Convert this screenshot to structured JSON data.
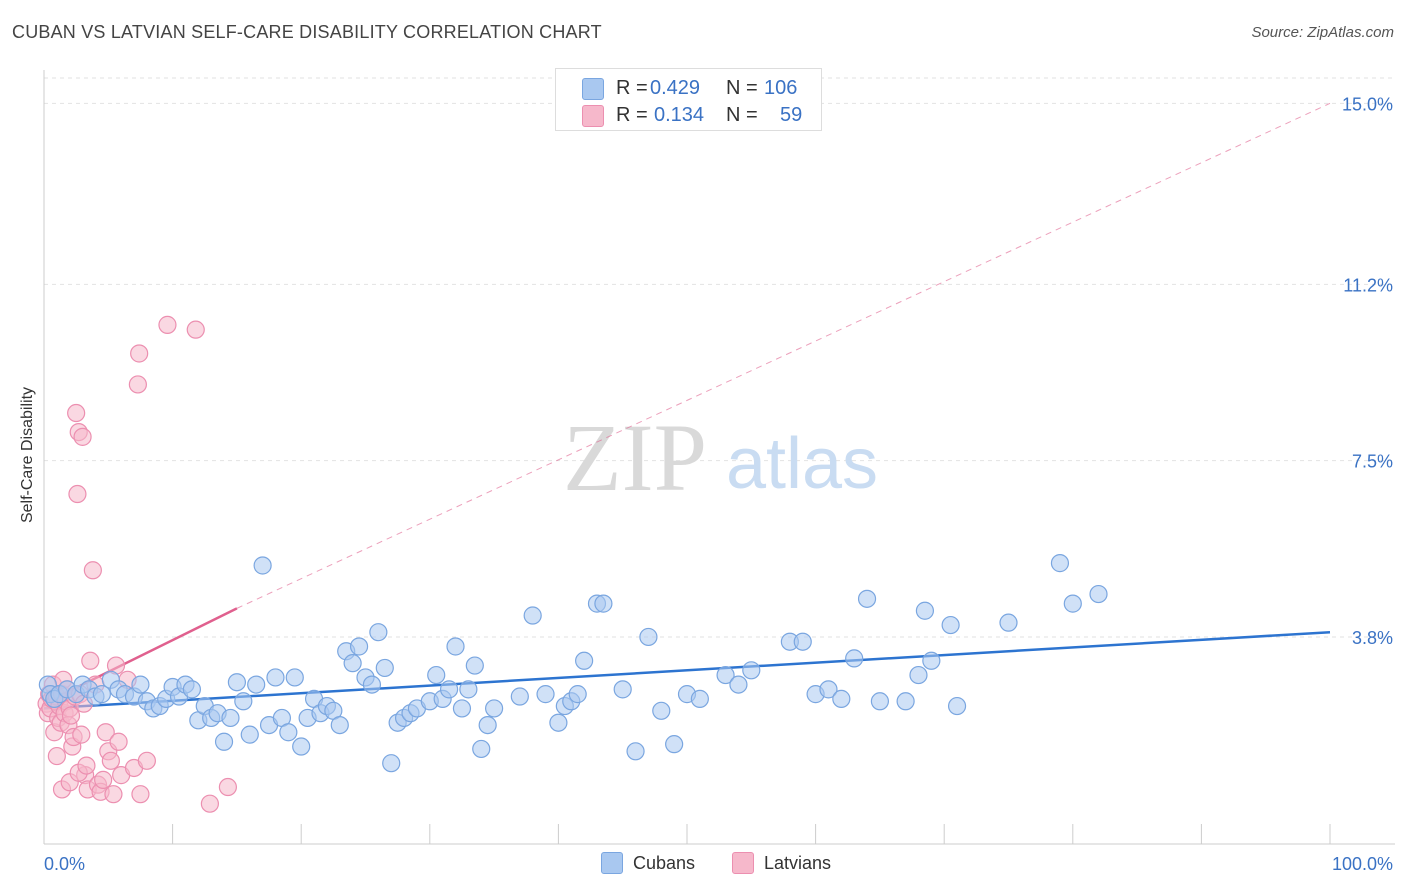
{
  "title": "CUBAN VS LATVIAN SELF-CARE DISABILITY CORRELATION CHART",
  "source": "Source: ZipAtlas.com",
  "watermark": {
    "zip": "ZIP",
    "atlas": "atlas"
  },
  "colors": {
    "blue_fill": "#a9c8f0",
    "blue_stroke": "#7aa6e0",
    "blue_line": "#2d74d0",
    "pink_fill": "#f6b8cb",
    "pink_stroke": "#ec8fb0",
    "pink_line": "#e0608e",
    "axis_label": "#3a72c4"
  },
  "legend": {
    "r_label": "R =",
    "n_label": "N =",
    "cubans": {
      "r": "0.429",
      "n": "106"
    },
    "latvians": {
      "r": "0.134",
      "n": "59"
    }
  },
  "bottom_legend": {
    "cubans": "Cubans",
    "latvians": "Latvians"
  },
  "chart_data": {
    "type": "scatter",
    "title": "CUBAN VS LATVIAN SELF-CARE DISABILITY CORRELATION CHART",
    "xlabel": "",
    "ylabel": "Self-Care Disability",
    "xlim": [
      0,
      100
    ],
    "ylim": [
      0,
      15.7
    ],
    "x_tick_labels": {
      "left": "0.0%",
      "right": "100.0%"
    },
    "y_ticks": [
      3.8,
      7.5,
      11.2,
      15.0
    ],
    "y_tick_labels": [
      "3.8%",
      "7.5%",
      "11.2%",
      "15.0%"
    ],
    "trend_lines": [
      {
        "series": "Cubans",
        "x": [
          0,
          100
        ],
        "y": [
          2.3,
          3.9
        ],
        "style": "solid"
      },
      {
        "series": "Latvians",
        "x": [
          0,
          15
        ],
        "y": [
          2.4,
          4.4
        ],
        "style": "solid"
      },
      {
        "series": "Latvians",
        "x": [
          15,
          100
        ],
        "y": [
          4.4,
          15.0
        ],
        "style": "dashed"
      }
    ],
    "series": [
      {
        "name": "Cubans",
        "points": [
          [
            0.3,
            2.8
          ],
          [
            0.5,
            2.6
          ],
          [
            0.8,
            2.5
          ],
          [
            1.2,
            2.6
          ],
          [
            1.8,
            2.7
          ],
          [
            2.5,
            2.6
          ],
          [
            3.0,
            2.8
          ],
          [
            3.5,
            2.7
          ],
          [
            4.0,
            2.55
          ],
          [
            4.5,
            2.6
          ],
          [
            5.2,
            2.9
          ],
          [
            5.8,
            2.7
          ],
          [
            6.3,
            2.6
          ],
          [
            7.0,
            2.55
          ],
          [
            7.5,
            2.8
          ],
          [
            8.0,
            2.45
          ],
          [
            8.5,
            2.3
          ],
          [
            9.0,
            2.35
          ],
          [
            9.5,
            2.5
          ],
          [
            10.0,
            2.75
          ],
          [
            10.5,
            2.55
          ],
          [
            11.0,
            2.8
          ],
          [
            11.5,
            2.7
          ],
          [
            12.0,
            2.05
          ],
          [
            12.5,
            2.35
          ],
          [
            13.0,
            2.1
          ],
          [
            13.5,
            2.2
          ],
          [
            14.0,
            1.6
          ],
          [
            14.5,
            2.1
          ],
          [
            15.0,
            2.85
          ],
          [
            15.5,
            2.45
          ],
          [
            16.0,
            1.75
          ],
          [
            16.5,
            2.8
          ],
          [
            17.0,
            5.3
          ],
          [
            17.5,
            1.95
          ],
          [
            18.0,
            2.95
          ],
          [
            18.5,
            2.1
          ],
          [
            19.0,
            1.8
          ],
          [
            19.5,
            2.95
          ],
          [
            20.0,
            1.5
          ],
          [
            20.5,
            2.1
          ],
          [
            21.0,
            2.5
          ],
          [
            21.5,
            2.2
          ],
          [
            22.0,
            2.35
          ],
          [
            22.5,
            2.25
          ],
          [
            23.0,
            1.95
          ],
          [
            23.5,
            3.5
          ],
          [
            24.0,
            3.25
          ],
          [
            24.5,
            3.6
          ],
          [
            25.0,
            2.95
          ],
          [
            25.5,
            2.8
          ],
          [
            26.0,
            3.9
          ],
          [
            26.5,
            3.15
          ],
          [
            27.0,
            1.15
          ],
          [
            27.5,
            2.0
          ],
          [
            28.0,
            2.1
          ],
          [
            28.5,
            2.2
          ],
          [
            29.0,
            2.3
          ],
          [
            30.0,
            2.45
          ],
          [
            30.5,
            3.0
          ],
          [
            31.0,
            2.5
          ],
          [
            31.5,
            2.7
          ],
          [
            32.0,
            3.6
          ],
          [
            32.5,
            2.3
          ],
          [
            33.0,
            2.7
          ],
          [
            33.5,
            3.2
          ],
          [
            34.0,
            1.45
          ],
          [
            34.5,
            1.95
          ],
          [
            35.0,
            2.3
          ],
          [
            37.0,
            2.55
          ],
          [
            38.0,
            4.25
          ],
          [
            39.0,
            2.6
          ],
          [
            40.0,
            2.0
          ],
          [
            40.5,
            2.35
          ],
          [
            41.0,
            2.45
          ],
          [
            41.5,
            2.6
          ],
          [
            42.0,
            3.3
          ],
          [
            43.0,
            4.5
          ],
          [
            43.5,
            4.5
          ],
          [
            45.0,
            2.7
          ],
          [
            46.0,
            1.4
          ],
          [
            47.0,
            3.8
          ],
          [
            48.0,
            2.25
          ],
          [
            49.0,
            1.55
          ],
          [
            50.0,
            2.6
          ],
          [
            51.0,
            2.5
          ],
          [
            53.0,
            3.0
          ],
          [
            54.0,
            2.8
          ],
          [
            55.0,
            3.1
          ],
          [
            58.0,
            3.7
          ],
          [
            59.0,
            3.7
          ],
          [
            60.0,
            2.6
          ],
          [
            61.0,
            2.7
          ],
          [
            62.0,
            2.5
          ],
          [
            63.0,
            3.35
          ],
          [
            64.0,
            4.6
          ],
          [
            65.0,
            2.45
          ],
          [
            67.0,
            2.45
          ],
          [
            68.0,
            3.0
          ],
          [
            68.5,
            4.35
          ],
          [
            69.0,
            3.3
          ],
          [
            70.5,
            4.05
          ],
          [
            71.0,
            2.35
          ],
          [
            75.0,
            4.1
          ],
          [
            79.0,
            5.35
          ],
          [
            80.0,
            4.5
          ],
          [
            82.0,
            4.7
          ]
        ]
      },
      {
        "name": "Latvians",
        "points": [
          [
            0.2,
            2.4
          ],
          [
            0.3,
            2.2
          ],
          [
            0.4,
            2.6
          ],
          [
            0.5,
            2.3
          ],
          [
            0.6,
            2.5
          ],
          [
            0.7,
            2.8
          ],
          [
            0.8,
            1.8
          ],
          [
            0.9,
            2.45
          ],
          [
            1.0,
            2.55
          ],
          [
            1.1,
            2.1
          ],
          [
            1.2,
            2.35
          ],
          [
            1.3,
            2.0
          ],
          [
            1.4,
            2.6
          ],
          [
            1.5,
            2.9
          ],
          [
            1.6,
            2.2
          ],
          [
            1.7,
            2.45
          ],
          [
            1.8,
            2.7
          ],
          [
            1.9,
            1.95
          ],
          [
            2.0,
            2.3
          ],
          [
            2.1,
            2.15
          ],
          [
            2.2,
            1.5
          ],
          [
            2.3,
            1.7
          ],
          [
            2.4,
            2.55
          ],
          [
            2.5,
            8.5
          ],
          [
            2.6,
            6.8
          ],
          [
            2.7,
            8.1
          ],
          [
            2.8,
            2.6
          ],
          [
            2.9,
            1.75
          ],
          [
            3.0,
            8.0
          ],
          [
            3.1,
            2.4
          ],
          [
            3.2,
            0.9
          ],
          [
            3.4,
            0.6
          ],
          [
            3.6,
            3.3
          ],
          [
            3.8,
            5.2
          ],
          [
            4.0,
            2.8
          ],
          [
            4.2,
            0.7
          ],
          [
            4.4,
            0.55
          ],
          [
            4.6,
            0.8
          ],
          [
            4.8,
            1.8
          ],
          [
            5.0,
            1.4
          ],
          [
            5.2,
            1.2
          ],
          [
            5.4,
            0.5
          ],
          [
            5.6,
            3.2
          ],
          [
            6.0,
            0.9
          ],
          [
            6.5,
            2.9
          ],
          [
            7.0,
            1.05
          ],
          [
            7.5,
            0.5
          ],
          [
            8.0,
            1.2
          ],
          [
            5.8,
            1.6
          ],
          [
            1.4,
            0.6
          ],
          [
            2.0,
            0.75
          ],
          [
            2.7,
            0.95
          ],
          [
            3.3,
            1.1
          ],
          [
            1.0,
            1.3
          ],
          [
            7.4,
            9.75
          ],
          [
            7.3,
            9.1
          ],
          [
            9.6,
            10.35
          ],
          [
            11.8,
            10.25
          ],
          [
            12.9,
            0.3
          ],
          [
            14.3,
            0.65
          ]
        ]
      }
    ]
  }
}
